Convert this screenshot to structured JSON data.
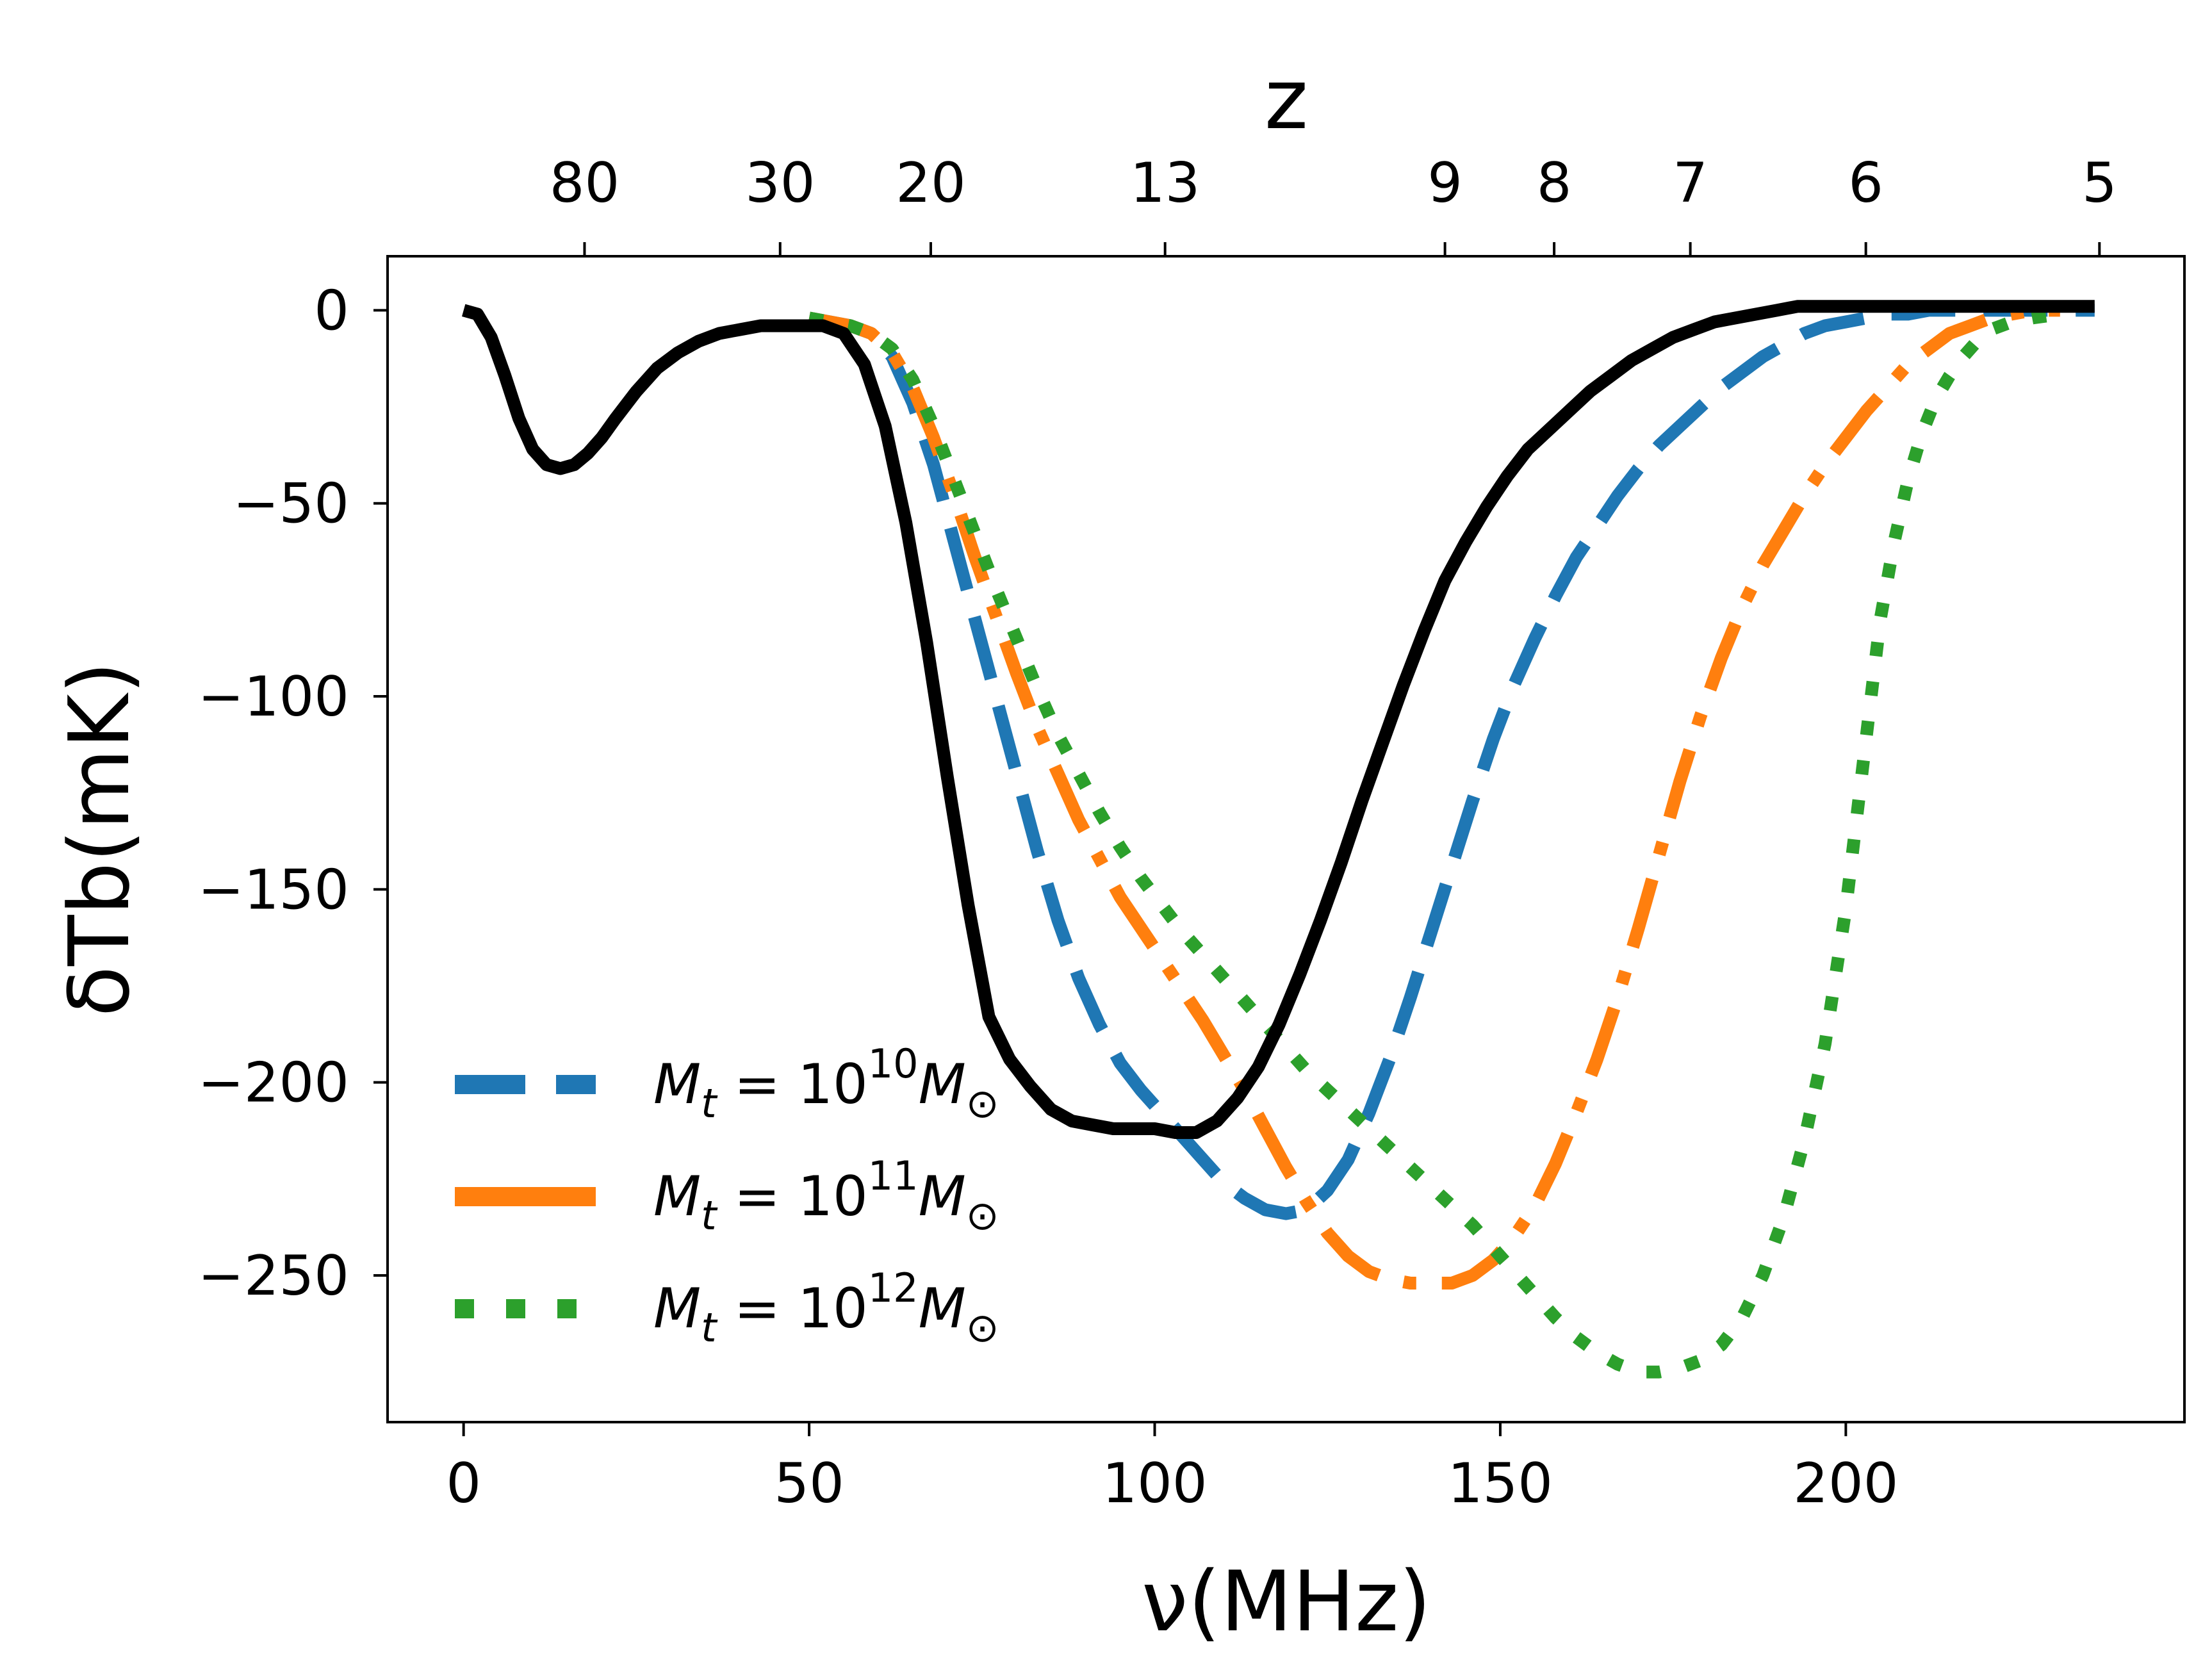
{
  "chart_data": {
    "type": "line",
    "xlabel": "ν(MHz)",
    "ylabel": "δTb(mK)",
    "top_axis_label": "z",
    "xlim": [
      -11,
      249
    ],
    "ylim": [
      -288,
      14
    ],
    "x_ticks": [
      "0",
      "50",
      "100",
      "150",
      "200"
    ],
    "y_ticks": [
      "0",
      "−50",
      "−100",
      "−150",
      "−200",
      "−250"
    ],
    "top_ticks": [
      {
        "label": "80",
        "nu": 17.5
      },
      {
        "label": "30",
        "nu": 45.8
      },
      {
        "label": "20",
        "nu": 67.6
      },
      {
        "label": "13",
        "nu": 101.5
      },
      {
        "label": "9",
        "nu": 142.0
      },
      {
        "label": "8",
        "nu": 157.8
      },
      {
        "label": "7",
        "nu": 177.5
      },
      {
        "label": "6",
        "nu": 202.9
      },
      {
        "label": "5",
        "nu": 236.7
      }
    ],
    "legend_position": "lower-left",
    "series": [
      {
        "name": "",
        "color": "#000000",
        "style": "solid",
        "x": [
          0,
          2,
          4,
          6,
          8,
          10,
          12,
          14,
          16,
          18,
          20,
          22,
          25,
          28,
          31,
          34,
          37,
          40,
          43,
          46,
          49,
          52,
          55,
          58,
          61,
          64,
          67,
          70,
          73,
          76,
          79,
          82,
          85,
          88,
          91,
          94,
          97,
          100,
          103,
          106,
          109,
          112,
          115,
          118,
          121,
          124,
          127,
          130,
          133,
          136,
          139,
          142,
          145,
          148,
          151,
          154,
          157,
          160,
          163,
          166,
          169,
          172,
          175,
          178,
          181,
          184,
          187,
          190,
          193,
          196,
          199,
          202,
          205,
          208,
          211,
          214,
          217,
          220,
          225,
          230,
          236
        ],
        "y": [
          0,
          -1,
          -7,
          -17,
          -28,
          -36,
          -40,
          -41,
          -40,
          -37,
          -33,
          -28,
          -21,
          -15,
          -11,
          -8,
          -6,
          -5,
          -4,
          -4,
          -4,
          -4,
          -6,
          -14,
          -30,
          -55,
          -86,
          -121,
          -154,
          -183,
          -194,
          -201,
          -207,
          -210,
          -211,
          -212,
          -212,
          -212,
          -213,
          -213,
          -210,
          -204,
          -196,
          -185,
          -172,
          -158,
          -143,
          -127,
          -112,
          -97,
          -83,
          -70,
          -60,
          -51,
          -43,
          -36,
          -31,
          -26,
          -21,
          -17,
          -13,
          -10,
          -7,
          -5,
          -3,
          -2,
          -1,
          0,
          1,
          1,
          1,
          1,
          1,
          1,
          1,
          1,
          1,
          1,
          1,
          1,
          1
        ]
      },
      {
        "name": "M_t = 10^10 M_⊙",
        "color": "#1f77b4",
        "style": "dashed",
        "x": [
          50,
          53,
          56,
          59,
          62,
          65,
          68,
          71,
          74,
          77,
          80,
          83,
          86,
          89,
          92,
          95,
          98,
          101,
          104,
          107,
          110,
          113,
          116,
          119,
          122,
          125,
          128,
          131,
          134,
          137,
          140,
          143,
          146,
          149,
          152,
          155,
          158,
          161,
          164,
          167,
          170,
          173,
          176,
          179,
          182,
          185,
          188,
          191,
          194,
          197,
          200,
          203,
          206,
          209,
          212,
          215,
          218,
          221,
          224,
          227,
          231,
          236
        ],
        "y": [
          -2,
          -3,
          -4,
          -6,
          -12,
          -24,
          -40,
          -60,
          -80,
          -100,
          -120,
          -140,
          -158,
          -173,
          -185,
          -195,
          -202,
          -208,
          -214,
          -220,
          -226,
          -230,
          -233,
          -234,
          -233,
          -228,
          -220,
          -208,
          -194,
          -178,
          -161,
          -144,
          -127,
          -111,
          -97,
          -85,
          -74,
          -64,
          -56,
          -48,
          -41,
          -35,
          -30,
          -25,
          -20,
          -16,
          -12,
          -9,
          -6,
          -4,
          -3,
          -2,
          -1,
          -1,
          0,
          0,
          0,
          0,
          0,
          0,
          0,
          0
        ]
      },
      {
        "name": "M_t = 10^11 M_⊙",
        "color": "#ff7f0e",
        "style": "dashdot",
        "x": [
          50,
          53,
          56,
          59,
          62,
          65,
          68,
          71,
          74,
          77,
          80,
          83,
          86,
          89,
          92,
          95,
          98,
          101,
          104,
          107,
          110,
          113,
          116,
          119,
          122,
          125,
          128,
          131,
          134,
          137,
          140,
          143,
          146,
          149,
          152,
          155,
          158,
          161,
          164,
          167,
          170,
          173,
          176,
          179,
          182,
          185,
          188,
          191,
          194,
          197,
          200,
          203,
          206,
          209,
          212,
          215,
          218,
          221,
          224,
          227,
          231
        ],
        "y": [
          -2,
          -3,
          -4,
          -6,
          -11,
          -20,
          -33,
          -48,
          -64,
          -79,
          -94,
          -108,
          -120,
          -132,
          -142,
          -152,
          -160,
          -168,
          -176,
          -184,
          -193,
          -202,
          -212,
          -222,
          -231,
          -239,
          -245,
          -249,
          -251,
          -252,
          -252,
          -252,
          -250,
          -246,
          -240,
          -232,
          -221,
          -208,
          -194,
          -178,
          -160,
          -141,
          -122,
          -105,
          -90,
          -77,
          -66,
          -57,
          -48,
          -40,
          -33,
          -26,
          -20,
          -14,
          -10,
          -6,
          -4,
          -2,
          -1,
          0,
          0
        ]
      },
      {
        "name": "M_t = 10^12 M_⊙",
        "color": "#2ca02c",
        "style": "dotted",
        "x": [
          50,
          53,
          56,
          59,
          62,
          65,
          68,
          71,
          74,
          77,
          80,
          83,
          86,
          89,
          92,
          95,
          98,
          101,
          104,
          107,
          110,
          113,
          116,
          119,
          122,
          125,
          128,
          131,
          134,
          137,
          140,
          143,
          146,
          149,
          152,
          155,
          158,
          161,
          164,
          167,
          170,
          173,
          176,
          179,
          182,
          185,
          188,
          191,
          194,
          197,
          200,
          203,
          205,
          207,
          209,
          211,
          213,
          215,
          217,
          219,
          221,
          224,
          227,
          231
        ],
        "y": [
          -2,
          -3,
          -4,
          -6,
          -10,
          -18,
          -30,
          -44,
          -58,
          -72,
          -85,
          -98,
          -110,
          -120,
          -130,
          -139,
          -147,
          -154,
          -161,
          -167,
          -173,
          -179,
          -185,
          -191,
          -197,
          -202,
          -207,
          -212,
          -217,
          -222,
          -227,
          -232,
          -237,
          -243,
          -249,
          -255,
          -261,
          -266,
          -270,
          -273,
          -275,
          -275,
          -274,
          -272,
          -268,
          -261,
          -250,
          -235,
          -215,
          -190,
          -155,
          -110,
          -80,
          -60,
          -44,
          -32,
          -23,
          -17,
          -12,
          -8,
          -5,
          -3,
          -2,
          -1
        ]
      }
    ]
  }
}
